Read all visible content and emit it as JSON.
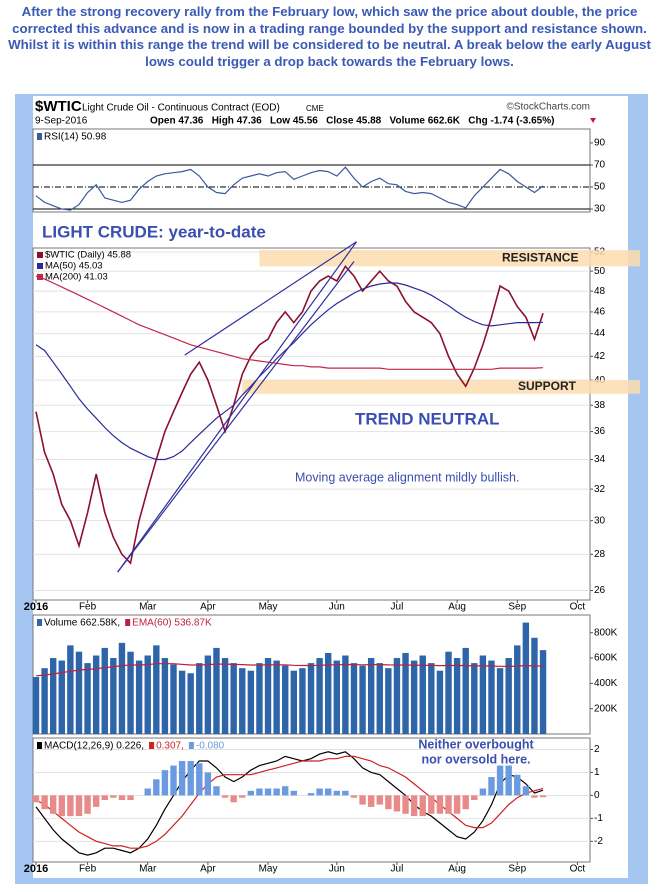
{
  "caption": "After the strong recovery rally from the February low, which saw the price about double, the price corrected this advance and is now in a trading range bounded by the support and resistance shown. Whilst it is within this range the trend will be considered to be neutral. A break below the early August lows could trigger a drop back towards the February lows.",
  "header": {
    "symbol": "$WTIC",
    "name": "Light Crude Oil - Continuous Contract (EOD)",
    "exchange": "CME",
    "date": "9-Sep-2016",
    "source": "©StockCharts.com",
    "stats": "Open 47.36   High 47.36   Low 45.56   Close 45.88   Volume 662.6K   Chg -1.74 (-3.65%)"
  },
  "chart_data": [
    {
      "type": "line",
      "ylim": [
        27.3,
        102.7
      ],
      "yticks": [
        90,
        70,
        50,
        30
      ],
      "grid": false,
      "levels": [
        70,
        30
      ],
      "midline": 50,
      "legend": "upper-left",
      "series": [
        {
          "name": "RSI(14) 50.98",
          "color": "#3a5a9a",
          "values": [
            42,
            36,
            33,
            30,
            29,
            34,
            45,
            52,
            40,
            38,
            36,
            38,
            48,
            55,
            60,
            62,
            63,
            64,
            66,
            60,
            50,
            45,
            44,
            52,
            58,
            60,
            62,
            60,
            63,
            64,
            57,
            60,
            63,
            65,
            64,
            60,
            68,
            58,
            50,
            55,
            58,
            53,
            52,
            46,
            44,
            45,
            44,
            40,
            36,
            34,
            31,
            42,
            50,
            58,
            66,
            62,
            55,
            50,
            45,
            50.98,
            null,
            null,
            null,
            null,
            null
          ]
        }
      ]
    },
    {
      "type": "line",
      "log": true,
      "ylim": [
        25.5,
        52.43
      ],
      "yticks": [
        26,
        28,
        30,
        32,
        34,
        36,
        38,
        40,
        42,
        44,
        46,
        48,
        50,
        52
      ],
      "grid": true,
      "legend": "upper-left",
      "categories": [
        "2016",
        null,
        null,
        null,
        null,
        null,
        "Feb",
        null,
        null,
        null,
        null,
        null,
        null,
        "Mar",
        null,
        null,
        null,
        null,
        null,
        null,
        "Apr",
        null,
        null,
        null,
        null,
        null,
        null,
        "May",
        null,
        null,
        null,
        null,
        null,
        null,
        null,
        "Jun",
        null,
        null,
        null,
        null,
        null,
        null,
        "Jul",
        null,
        null,
        null,
        null,
        null,
        null,
        "Aug",
        null,
        null,
        null,
        null,
        null,
        null,
        "Sep",
        null,
        null,
        null,
        null,
        null,
        null,
        "Oct",
        null
      ],
      "series": [
        {
          "name": "$WTIC (Daily) 45.88",
          "color": "#8b1030",
          "values": [
            37.5,
            34.5,
            33,
            31,
            30,
            28.5,
            30.5,
            33,
            30.5,
            29,
            28,
            27.5,
            30,
            32,
            34,
            36,
            37.5,
            39,
            40.5,
            41.5,
            40,
            38,
            36,
            38,
            40.5,
            42,
            43,
            43.5,
            45,
            46,
            45,
            46,
            48,
            49,
            49.5,
            49,
            50.5,
            49.5,
            48,
            49,
            50,
            49,
            48.5,
            47,
            46,
            45.5,
            45,
            44,
            42,
            40.5,
            39.5,
            41,
            43,
            45.5,
            48.5,
            48,
            46.5,
            45.5,
            43.5,
            45.88,
            null,
            null,
            null,
            null,
            null
          ]
        },
        {
          "name": "MA(50) 45.03",
          "color": "#2a2a9a",
          "values": [
            43,
            42.5,
            41.5,
            40.5,
            39.5,
            38.5,
            37.7,
            37,
            36.3,
            35.7,
            35.2,
            34.8,
            34.5,
            34.2,
            34,
            34,
            34.2,
            34.6,
            35.2,
            35.8,
            36.4,
            37,
            37.5,
            38,
            38.8,
            39.5,
            40.3,
            41,
            41.8,
            42.5,
            43.2,
            44,
            44.8,
            45.5,
            46.2,
            46.8,
            47.3,
            47.8,
            48.2,
            48.5,
            48.7,
            48.8,
            48.8,
            48.6,
            48.3,
            48,
            47.6,
            47.1,
            46.6,
            46,
            45.5,
            45.1,
            44.8,
            44.7,
            44.8,
            44.9,
            45,
            45,
            45,
            45.03,
            null,
            null,
            null,
            null,
            null
          ]
        },
        {
          "name": "MA(200) 41.03",
          "color": "#c0284a",
          "values": [
            49.5,
            49.2,
            48.8,
            48.4,
            48,
            47.6,
            47.2,
            46.8,
            46.4,
            46,
            45.6,
            45.2,
            44.8,
            44.5,
            44.2,
            43.9,
            43.6,
            43.3,
            43,
            42.8,
            42.6,
            42.4,
            42.2,
            42,
            41.8,
            41.7,
            41.6,
            41.5,
            41.4,
            41.3,
            41.2,
            41.2,
            41.1,
            41.1,
            41,
            41,
            41,
            41,
            41,
            41,
            41,
            40.9,
            40.9,
            40.9,
            40.9,
            40.9,
            40.9,
            40.9,
            40.9,
            40.9,
            40.9,
            40.9,
            40.9,
            40.9,
            41,
            41,
            41,
            41,
            41,
            41.03,
            null,
            null,
            null,
            null,
            null
          ]
        }
      ],
      "bands": [
        {
          "label": "RESISTANCE",
          "range": [
            50.5,
            52.2
          ],
          "start": 26,
          "color": "#fbdcae"
        },
        {
          "label": "SUPPORT",
          "range": [
            38.9,
            40
          ],
          "start": 24,
          "color": "#fbdcae"
        }
      ],
      "trendlines": [
        {
          "x": [
            9.5,
            37.3
          ],
          "y": [
            27,
            53.1
          ]
        },
        {
          "x": [
            9.5,
            37
          ],
          "y": [
            27,
            51
          ]
        },
        {
          "x": [
            17.3,
            37.3
          ],
          "y": [
            42.1,
            53.1
          ]
        }
      ],
      "annotations": [
        "LIGHT CRUDE: year-to-date",
        "TREND NEUTRAL",
        "Moving average alignment mildly bullish."
      ]
    },
    {
      "type": "bar",
      "ylim": [
        0,
        940000
      ],
      "yticks": [
        {
          "value": 200000,
          "label": "200K"
        },
        {
          "value": 400000,
          "label": "400K"
        },
        {
          "value": 600000,
          "label": "600K"
        },
        {
          "value": 800000,
          "label": "800K"
        }
      ],
      "grid": false,
      "legend": "upper-left",
      "series": [
        {
          "name": "Volume 662.58K,",
          "color": "#2e64a8",
          "values": [
            450000,
            520000,
            600000,
            580000,
            700000,
            650000,
            560000,
            620000,
            680000,
            600000,
            720000,
            650000,
            580000,
            620000,
            700000,
            600000,
            550000,
            500000,
            480000,
            560000,
            620000,
            680000,
            600000,
            560000,
            520000,
            500000,
            560000,
            600000,
            580000,
            540000,
            500000,
            520000,
            560000,
            600000,
            640000,
            580000,
            620000,
            560000,
            540000,
            600000,
            560000,
            520000,
            600000,
            640000,
            580000,
            620000,
            560000,
            500000,
            650000,
            600000,
            680000,
            560000,
            620000,
            580000,
            520000,
            600000,
            700000,
            880000,
            760000,
            662580,
            null,
            null,
            null,
            null,
            null
          ]
        },
        {
          "name": "EMA(60) 536.87K",
          "type": "line",
          "color": "#c02040",
          "values": [
            460000,
            465000,
            475000,
            485000,
            495000,
            505000,
            510000,
            515000,
            525000,
            530000,
            540000,
            545000,
            545000,
            548000,
            555000,
            555000,
            555000,
            550000,
            545000,
            545000,
            548000,
            552000,
            552000,
            550000,
            548000,
            545000,
            545000,
            546000,
            547000,
            546000,
            543000,
            541000,
            541000,
            543000,
            546000,
            547000,
            549000,
            548000,
            547000,
            548000,
            548000,
            546000,
            545000,
            545000,
            544000,
            543000,
            542000,
            540000,
            541000,
            541000,
            540000,
            538000,
            538000,
            537000,
            535000,
            534000,
            536000,
            540000,
            538000,
            536870,
            null,
            null,
            null,
            null,
            null
          ]
        }
      ]
    },
    {
      "type": "line",
      "ylim": [
        -2.9,
        2.5
      ],
      "yticks": [
        2,
        1,
        0,
        -1,
        -2
      ],
      "grid": true,
      "legend": "upper-left",
      "categories": [
        "2016",
        null,
        null,
        null,
        null,
        null,
        "Feb",
        null,
        null,
        null,
        null,
        null,
        null,
        "Mar",
        null,
        null,
        null,
        null,
        null,
        null,
        "Apr",
        null,
        null,
        null,
        null,
        null,
        null,
        "May",
        null,
        null,
        null,
        null,
        null,
        null,
        null,
        "Jun",
        null,
        null,
        null,
        null,
        null,
        null,
        "Jul",
        null,
        null,
        null,
        null,
        null,
        null,
        "Aug",
        null,
        null,
        null,
        null,
        null,
        null,
        "Sep",
        null,
        null,
        null,
        null,
        null,
        null,
        "Oct",
        null
      ],
      "series": [
        {
          "name": "MACD(12,26,9) 0.226,",
          "color": "#000000",
          "values": [
            -0.5,
            -1.0,
            -1.5,
            -1.9,
            -2.2,
            -2.5,
            -2.6,
            -2.5,
            -2.3,
            -2.3,
            -2.4,
            -2.5,
            -2.3,
            -1.9,
            -1.3,
            -0.6,
            0,
            0.6,
            1.1,
            1.5,
            1.5,
            1.2,
            0.8,
            0.6,
            0.8,
            1.1,
            1.3,
            1.4,
            1.5,
            1.7,
            1.6,
            1.5,
            1.6,
            1.8,
            1.9,
            1.8,
            1.9,
            1.6,
            1.2,
            1.0,
            0.9,
            0.6,
            0.3,
            0,
            -0.4,
            -0.7,
            -0.9,
            -1.2,
            -1.5,
            -1.8,
            -1.9,
            -1.6,
            -1.1,
            -0.4,
            0.5,
            0.9,
            0.8,
            0.5,
            0.1,
            0.226,
            null,
            null,
            null,
            null,
            null
          ]
        },
        {
          "name": "0.307,",
          "color": "#d02020",
          "values": [
            -0.2,
            -0.4,
            -0.7,
            -1.0,
            -1.3,
            -1.6,
            -1.8,
            -2.0,
            -2.1,
            -2.2,
            -2.2,
            -2.3,
            -2.3,
            -2.2,
            -2.0,
            -1.7,
            -1.3,
            -0.9,
            -0.4,
            0.1,
            0.5,
            0.8,
            0.9,
            0.9,
            0.9,
            0.9,
            1.0,
            1.1,
            1.2,
            1.3,
            1.4,
            1.5,
            1.5,
            1.5,
            1.6,
            1.6,
            1.7,
            1.7,
            1.6,
            1.5,
            1.3,
            1.2,
            1.0,
            0.8,
            0.5,
            0.2,
            -0.1,
            -0.4,
            -0.7,
            -1.0,
            -1.3,
            -1.4,
            -1.4,
            -1.2,
            -0.8,
            -0.4,
            -0.1,
            0.1,
            0.2,
            0.307,
            null,
            null,
            null,
            null,
            null
          ]
        },
        {
          "name": "-0.080",
          "type": "bar",
          "color": "#6a9ae0",
          "negative_color": "#e88a8a",
          "values": [
            -0.3,
            -0.6,
            -0.8,
            -0.9,
            -0.9,
            -0.9,
            -0.8,
            -0.5,
            -0.2,
            -0.1,
            -0.2,
            -0.2,
            0,
            0.3,
            0.7,
            1.1,
            1.3,
            1.5,
            1.5,
            1.4,
            1.0,
            0.4,
            -0.1,
            -0.3,
            -0.1,
            0.2,
            0.3,
            0.3,
            0.3,
            0.4,
            0.2,
            0,
            0.1,
            0.3,
            0.3,
            0.2,
            0.2,
            -0.1,
            -0.4,
            -0.5,
            -0.4,
            -0.6,
            -0.7,
            -0.8,
            -0.9,
            -0.9,
            -0.8,
            -0.8,
            -0.8,
            -0.8,
            -0.6,
            -0.2,
            0.3,
            0.8,
            1.3,
            1.3,
            0.9,
            0.4,
            -0.1,
            -0.08,
            null,
            null,
            null,
            null,
            null
          ]
        }
      ],
      "annotations": [
        "Neither overbought",
        "nor oversold here."
      ]
    }
  ]
}
